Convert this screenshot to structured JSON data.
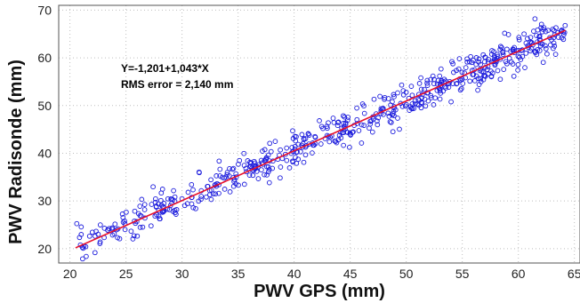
{
  "chart_data": {
    "type": "scatter",
    "xlabel": "PWV GPS (mm)",
    "ylabel": "PWV Radisonde (mm)",
    "xlim": [
      19,
      65.5
    ],
    "ylim": [
      17,
      71
    ],
    "xticks": [
      "20",
      "25",
      "30",
      "35",
      "40",
      "45",
      "50",
      "55",
      "60",
      "65"
    ],
    "yticks": [
      "20",
      "30",
      "40",
      "50",
      "60",
      "70"
    ],
    "grid": true,
    "annotation": {
      "equation": "Y=-1,201+1,043*X",
      "rms": "RMS error = 2,140 mm"
    },
    "fit_line": {
      "slope": 1.043,
      "intercept": -1.201,
      "x_range": [
        20.5,
        64.2
      ]
    },
    "point_count": 620,
    "x_range": [
      20.5,
      64.2
    ],
    "spread_sd": 2.14,
    "colors": {
      "points": "#1a1adc",
      "fit": "#e8102a"
    }
  }
}
